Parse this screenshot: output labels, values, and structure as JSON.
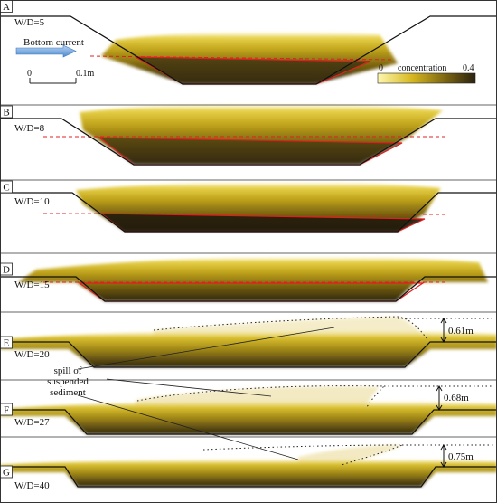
{
  "panels": [
    {
      "letter": "A",
      "ratio": "W/D=5"
    },
    {
      "letter": "B",
      "ratio": "W/D=8"
    },
    {
      "letter": "C",
      "ratio": "W/D=10"
    },
    {
      "letter": "D",
      "ratio": "W/D=15"
    },
    {
      "letter": "E",
      "ratio": "W/D=20"
    },
    {
      "letter": "F",
      "ratio": "W/D=27"
    },
    {
      "letter": "G",
      "ratio": "W/D=40"
    }
  ],
  "current_label": "Bottom current",
  "scale_bar": {
    "start": "0",
    "end": "0.1m"
  },
  "colorbar": {
    "min": "0",
    "label": "concentration",
    "max": "0.4"
  },
  "spill_label": [
    "spill of",
    "suspended",
    "sediment"
  ],
  "heights": {
    "E": "0.61m",
    "F": "0.68m",
    "G": "0.75m"
  },
  "colors": {
    "dense": "#2b2210",
    "mid": "#8a7410",
    "dilute": "#d8bd20",
    "spill": "#f1e6b8",
    "interface_line": "#e02020",
    "arrow": "#6aa0dc"
  }
}
